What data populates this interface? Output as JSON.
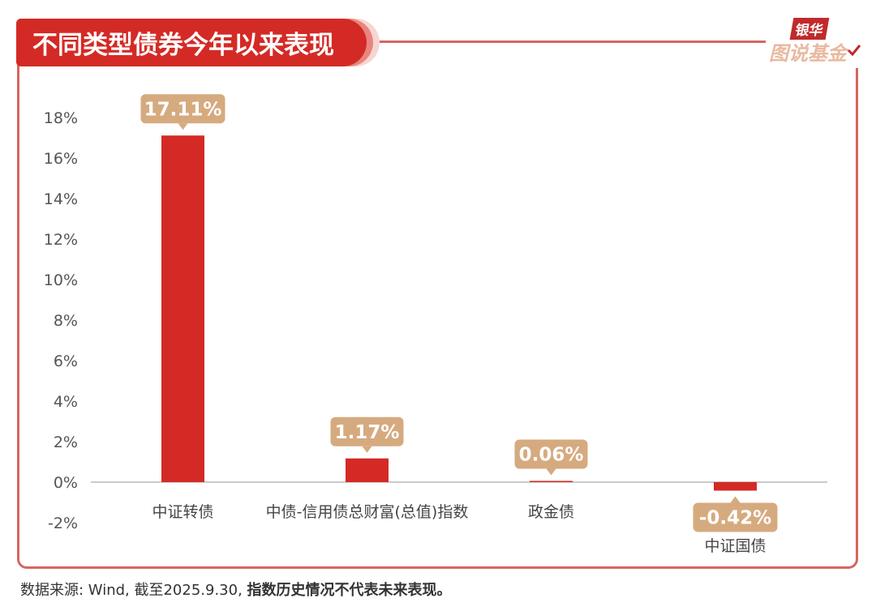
{
  "header": {
    "title": "不同类型债券今年以来表现",
    "logo_top": "银华",
    "logo_bottom": "图说基金"
  },
  "footer": {
    "source_text": "数据来源: Wind, 截至2025.9.30, ",
    "disclaimer": "指数历史情况不代表未来表现。"
  },
  "colors": {
    "bar": "#d42a25",
    "label_bg": "#d6aa7f",
    "frame": "#d6665f",
    "axis_text": "#555555"
  },
  "chart_data": {
    "type": "bar",
    "categories": [
      "中证转债",
      "中债-信用债总财富(总值)指数",
      "政金债",
      "中证国债"
    ],
    "values": [
      17.11,
      1.17,
      0.06,
      -0.42
    ],
    "value_labels": [
      "17.11%",
      "1.17%",
      "0.06%",
      "-0.42%"
    ],
    "ylim": [
      -2,
      18
    ],
    "yticks": [
      -2,
      0,
      2,
      4,
      6,
      8,
      10,
      12,
      14,
      16,
      18
    ],
    "ytick_labels": [
      "-2%",
      "0%",
      "2%",
      "4%",
      "6%",
      "8%",
      "10%",
      "12%",
      "14%",
      "16%",
      "18%"
    ],
    "grid": false,
    "title": "",
    "xlabel": "",
    "ylabel": ""
  }
}
